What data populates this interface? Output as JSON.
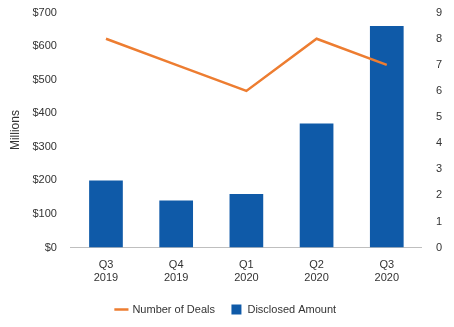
{
  "chart_data": {
    "type": "bar",
    "y_label": "Millions",
    "categories": [
      "Q3 2019",
      "Q4 2019",
      "Q1 2020",
      "Q2 2020",
      "Q3 2020"
    ],
    "series": [
      {
        "name": "Disclosed Amount",
        "type": "bar",
        "color": "#0f5aa8",
        "values": [
          200,
          140,
          160,
          370,
          660
        ]
      },
      {
        "name": "Number of Deals",
        "type": "line",
        "color": "#ed7d31",
        "axis": "y2",
        "values": [
          8,
          7,
          6,
          8,
          7
        ]
      }
    ],
    "ylim": [
      0,
      700
    ],
    "yticks": [
      {
        "value": 0,
        "label": "$0"
      },
      {
        "value": 100,
        "label": "$100"
      },
      {
        "value": 200,
        "label": "$200"
      },
      {
        "value": 300,
        "label": "$300"
      },
      {
        "value": 400,
        "label": "$400"
      },
      {
        "value": 500,
        "label": "$500"
      },
      {
        "value": 600,
        "label": "$600"
      },
      {
        "value": 700,
        "label": "$700"
      }
    ],
    "y2lim": [
      0,
      9
    ],
    "y2ticks": [
      0,
      1,
      2,
      3,
      4,
      5,
      6,
      7,
      8,
      9
    ],
    "grid": false,
    "legend": "bottom"
  }
}
